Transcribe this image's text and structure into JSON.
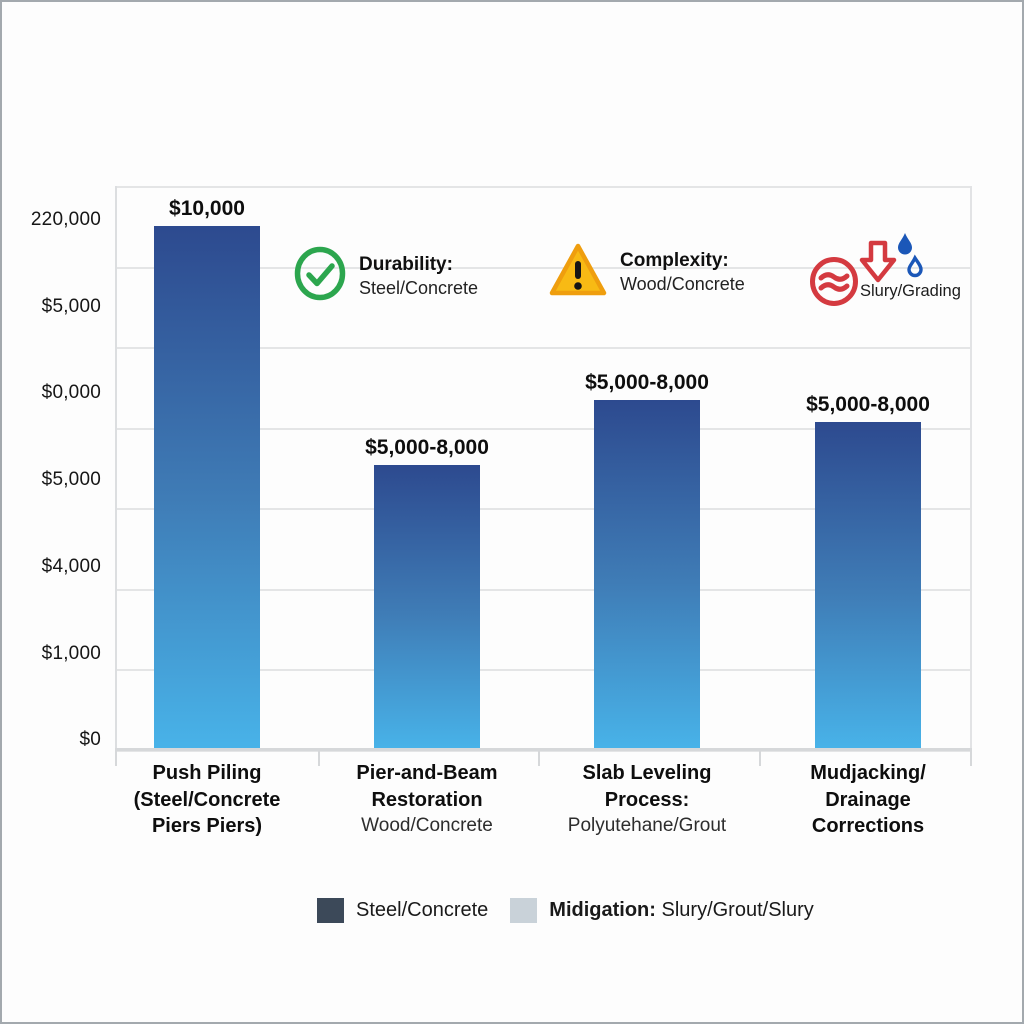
{
  "chart_data": {
    "type": "bar",
    "title": "",
    "xlabel": "",
    "ylabel": "",
    "grid": true,
    "y_ticks": [
      "220,000",
      "$5,000",
      "$0,000",
      "$5,000",
      "$4,000",
      "$1,000",
      "$0"
    ],
    "categories": [
      {
        "title_lines": [
          "Push Piling",
          "(Steel/Concrete",
          "Piers Piers)"
        ],
        "subtitle": ""
      },
      {
        "title_lines": [
          "Pier-and-Beam",
          "Restoration"
        ],
        "subtitle": "Wood/Concrete"
      },
      {
        "title_lines": [
          "Slab Leveling",
          "Process:"
        ],
        "subtitle": "Polyutehane/Grout"
      },
      {
        "title_lines": [
          "Mudjacking/",
          "Drainage",
          "Corrections"
        ],
        "subtitle": ""
      }
    ],
    "bars": [
      {
        "value_label": "$10,000",
        "height_frac": 0.929
      },
      {
        "value_label": "$5,000-8,000",
        "height_frac": 0.505
      },
      {
        "value_label": "$5,000-8,000",
        "height_frac": 0.621
      },
      {
        "value_label": "$5,000-8,000",
        "height_frac": 0.582
      }
    ],
    "bar_gradient_top": "#2d4a8f",
    "bar_gradient_bottom": "#48b3e9",
    "annotations": [
      {
        "icon": "check-circle-icon",
        "icon_color": "#2ca64e",
        "title": "Durability:",
        "subtitle": "Steel/Concrete"
      },
      {
        "icon": "warning-triangle-icon",
        "icon_color": "#f8ba14",
        "title": "Complexity:",
        "subtitle": "Wood/Concrete"
      },
      {
        "icon": "waves-arrow-droplets-icon",
        "icon_colors": [
          "#d43a40",
          "#1b57b8"
        ],
        "label": "Slury/Grading"
      }
    ],
    "legend": [
      {
        "swatch_color": "#3c4959",
        "label_bold": "",
        "label": "Steel/Concrete"
      },
      {
        "swatch_color": "#c9d2d9",
        "label_bold": "Midigation:",
        "label": "Slury/Grout/Slury"
      }
    ]
  }
}
